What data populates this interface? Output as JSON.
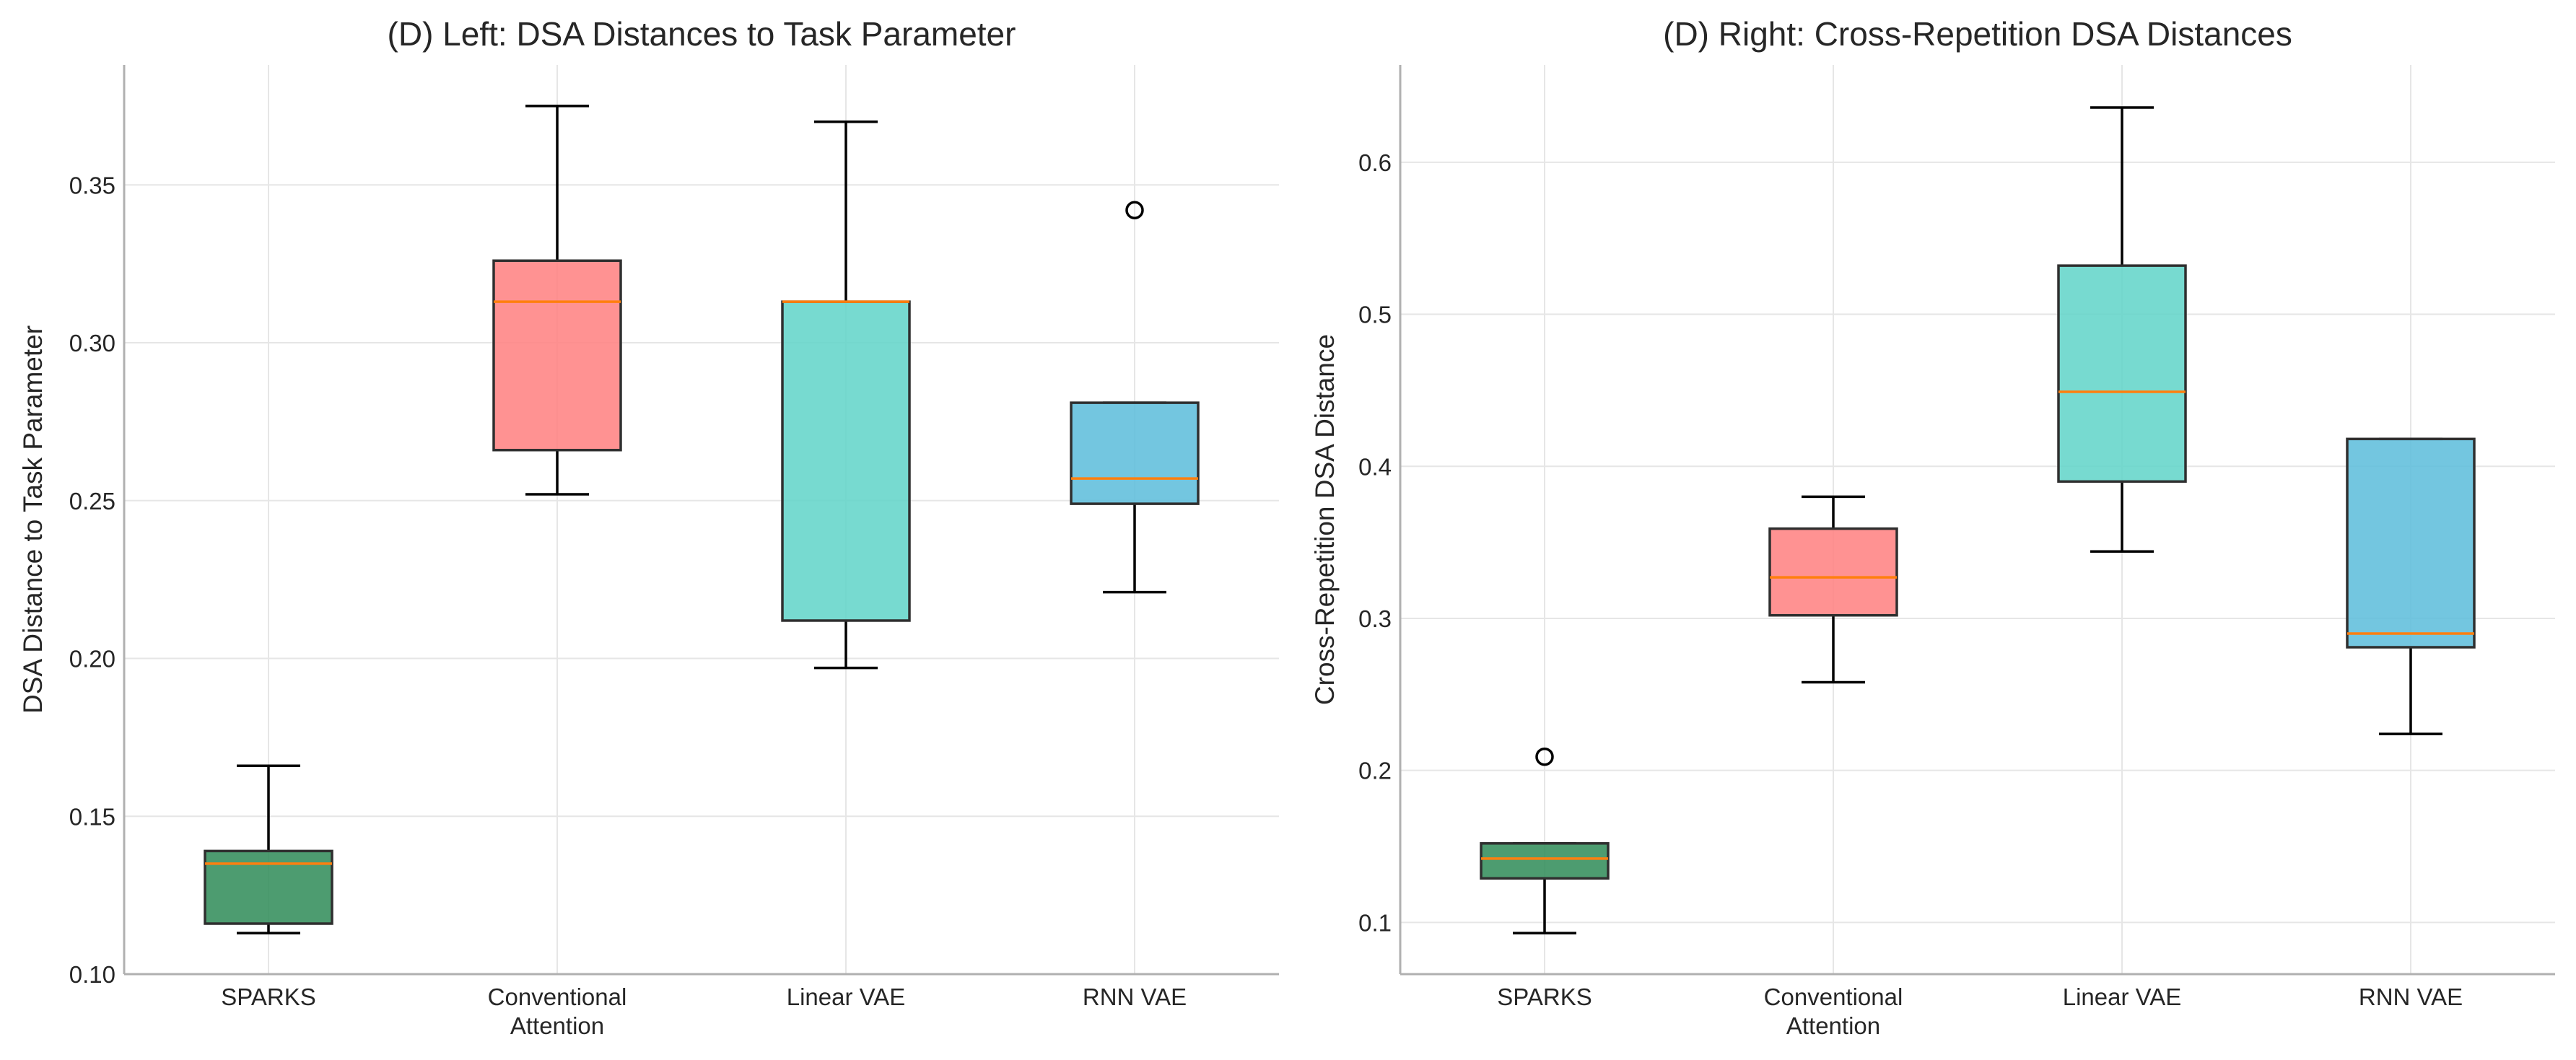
{
  "chart_data": [
    {
      "type": "box",
      "title": "(D) Left: DSA Distances to Task Parameter",
      "xlabel": "",
      "ylabel": "DSA Distance to Task Parameter",
      "ylim": [
        0.1,
        0.388
      ],
      "yticks": [
        0.1,
        0.15,
        0.2,
        0.25,
        0.3,
        0.35
      ],
      "ytick_labels": [
        "0.10",
        "0.15",
        "0.20",
        "0.25",
        "0.30",
        "0.35"
      ],
      "grid": true,
      "categories": [
        {
          "label_lines": [
            "SPARKS"
          ]
        },
        {
          "label_lines": [
            "Conventional",
            "Attention"
          ]
        },
        {
          "label_lines": [
            "Linear VAE"
          ]
        },
        {
          "label_lines": [
            "RNN VAE"
          ]
        }
      ],
      "boxes": [
        {
          "whislo": 0.113,
          "q1": 0.116,
          "med": 0.135,
          "q3": 0.139,
          "whishi": 0.166,
          "fliers": [],
          "color": "#2e8b57"
        },
        {
          "whislo": 0.252,
          "q1": 0.266,
          "med": 0.313,
          "q3": 0.326,
          "whishi": 0.375,
          "fliers": [],
          "color": "#ff7f7f"
        },
        {
          "whislo": 0.197,
          "q1": 0.212,
          "med": 0.313,
          "q3": 0.313,
          "whishi": 0.37,
          "fliers": [],
          "color": "#5fd4c8"
        },
        {
          "whislo": 0.221,
          "q1": 0.249,
          "med": 0.257,
          "q3": 0.281,
          "whishi": 0.281,
          "fliers": [
            0.342
          ],
          "color": "#5bbcdb"
        }
      ]
    },
    {
      "type": "box",
      "title": "(D) Right: Cross-Repetition DSA Distances",
      "xlabel": "",
      "ylabel": "Cross-Repetition DSA Distance",
      "ylim": [
        0.066,
        0.664
      ],
      "yticks": [
        0.1,
        0.2,
        0.3,
        0.4,
        0.5,
        0.6
      ],
      "ytick_labels": [
        "0.1",
        "0.2",
        "0.3",
        "0.4",
        "0.5",
        "0.6"
      ],
      "grid": true,
      "categories": [
        {
          "label_lines": [
            "SPARKS"
          ]
        },
        {
          "label_lines": [
            "Conventional",
            "Attention"
          ]
        },
        {
          "label_lines": [
            "Linear VAE"
          ]
        },
        {
          "label_lines": [
            "RNN VAE"
          ]
        }
      ],
      "boxes": [
        {
          "whislo": 0.093,
          "q1": 0.129,
          "med": 0.142,
          "q3": 0.152,
          "whishi": 0.152,
          "fliers": [
            0.209
          ],
          "color": "#2e8b57"
        },
        {
          "whislo": 0.258,
          "q1": 0.302,
          "med": 0.327,
          "q3": 0.359,
          "whishi": 0.38,
          "fliers": [],
          "color": "#ff7f7f"
        },
        {
          "whislo": 0.344,
          "q1": 0.39,
          "med": 0.449,
          "q3": 0.532,
          "whishi": 0.636,
          "fliers": [],
          "color": "#5fd4c8"
        },
        {
          "whislo": 0.224,
          "q1": 0.281,
          "med": 0.29,
          "q3": 0.418,
          "whishi": 0.418,
          "fliers": [],
          "color": "#5bbcdb"
        }
      ]
    }
  ],
  "style": {
    "median_color": "#ff7f0e",
    "whisker_color": "#000000",
    "grid_color": "#e6e6e6"
  }
}
